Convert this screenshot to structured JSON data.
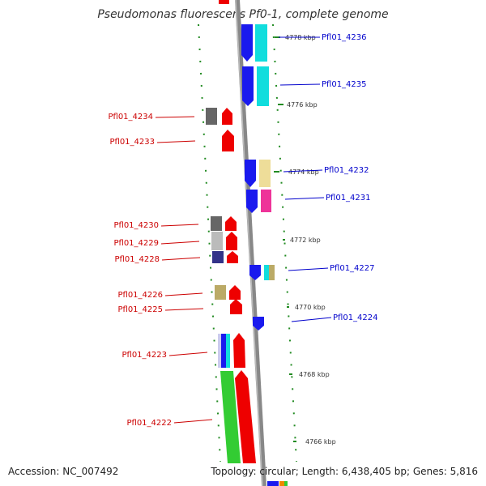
{
  "title": "Pseudomonas fluorescens Pf0-1, complete genome",
  "footer": {
    "accession": "Accession: NC_007492",
    "summary": "Topology: circular; Length: 6,438,405 bp; Genes: 5,816"
  },
  "colors": {
    "reverse_label": "#cc0000",
    "forward_label": "#0000cc",
    "backbone": "#888888"
  },
  "kbp_ticks": [
    {
      "label": "4778 kbp"
    },
    {
      "label": "4776 kbp"
    },
    {
      "label": "4774 kbp"
    },
    {
      "label": "4772 kbp"
    },
    {
      "label": "4770 kbp"
    },
    {
      "label": "4768 kbp"
    },
    {
      "label": "4766 kbp"
    }
  ],
  "genes_reverse": [
    {
      "label": "Pfl01_4234"
    },
    {
      "label": "Pfl01_4233"
    },
    {
      "label": "Pfl01_4230"
    },
    {
      "label": "Pfl01_4229"
    },
    {
      "label": "Pfl01_4228"
    },
    {
      "label": "Pfl01_4226"
    },
    {
      "label": "Pfl01_4225"
    },
    {
      "label": "Pfl01_4223"
    },
    {
      "label": "Pfl01_4222"
    }
  ],
  "genes_forward": [
    {
      "label": "Pfl01_4236"
    },
    {
      "label": "Pfl01_4235"
    },
    {
      "label": "Pfl01_4232"
    },
    {
      "label": "Pfl01_4231"
    },
    {
      "label": "Pfl01_4227"
    },
    {
      "label": "Pfl01_4224"
    }
  ]
}
